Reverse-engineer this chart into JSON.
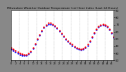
{
  "title": "Milwaukee Weather Outdoor Temperature (vs) Heat Index (Last 24 Hours)",
  "title_fontsize": 3.2,
  "bg_color": "#888888",
  "plot_bg_color": "#ffffff",
  "line1_color": "#ff0000",
  "line2_color": "#0000ff",
  "ylim": [
    20,
    90
  ],
  "yticks": [
    20,
    30,
    40,
    50,
    60,
    70,
    80,
    90
  ],
  "num_points": 48,
  "x_hours": [
    0,
    1,
    2,
    3,
    4,
    5,
    6,
    7,
    8,
    9,
    10,
    11,
    12,
    13,
    14,
    15,
    16,
    17,
    18,
    19,
    20,
    21,
    22,
    23,
    24,
    25,
    26,
    27,
    28,
    29,
    30,
    31,
    32,
    33,
    34,
    35,
    36,
    37,
    38,
    39,
    40,
    41,
    42,
    43,
    44,
    45,
    46,
    47
  ],
  "temp": [
    38,
    36,
    34,
    32,
    30,
    29,
    28,
    28,
    30,
    33,
    38,
    43,
    50,
    56,
    62,
    67,
    70,
    72,
    72,
    71,
    69,
    66,
    62,
    58,
    54,
    50,
    47,
    44,
    42,
    40,
    38,
    37,
    36,
    37,
    39,
    42,
    47,
    53,
    59,
    64,
    68,
    70,
    71,
    70,
    68,
    64,
    59,
    53
  ],
  "heat_index": [
    36,
    34,
    32,
    30,
    28,
    27,
    27,
    27,
    29,
    32,
    37,
    42,
    49,
    55,
    61,
    66,
    69,
    71,
    71,
    70,
    68,
    65,
    61,
    57,
    53,
    49,
    46,
    43,
    41,
    39,
    37,
    36,
    35,
    36,
    38,
    41,
    46,
    52,
    58,
    63,
    67,
    69,
    70,
    69,
    67,
    63,
    58,
    52
  ],
  "marker_size": 1.5,
  "grid_color": "#aaaaaa",
  "axis_color": "#000000",
  "tick_fontsize": 2.5,
  "right_ytick_fontsize": 2.8,
  "num_vgrid": 13,
  "num_xticks": 24
}
